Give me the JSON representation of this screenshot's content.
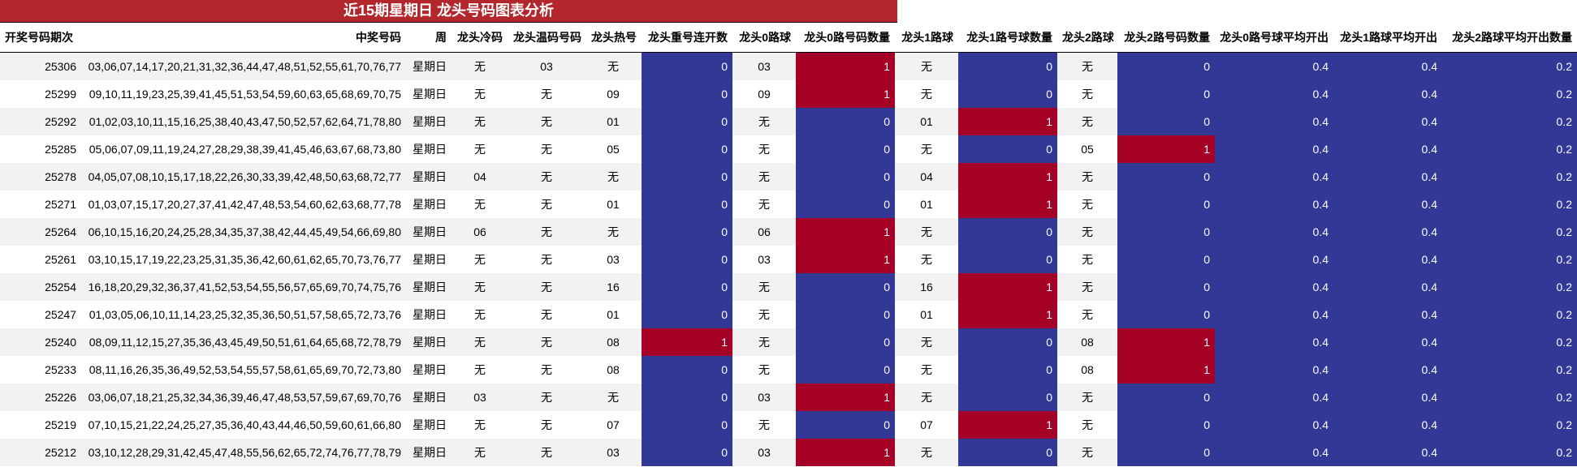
{
  "title": "近15期星期日 龙头号码图表分析",
  "colors": {
    "title_bg": "#b3262b",
    "blue": "#323896",
    "red": "#a50026"
  },
  "headers": [
    "开奖号码期次",
    "中奖号码",
    "周",
    "龙头冷码",
    "龙头温码号码",
    "龙头热号",
    "龙头重号连开数",
    "龙头0路球",
    "龙头0路号码数量",
    "龙头1路球",
    "龙头1路号球数量",
    "龙头2路球",
    "龙头2路号码数量",
    "龙头0路号球平均开出",
    "龙头1路球平均开出",
    "龙头2路球平均开出数量"
  ],
  "rows": [
    [
      "25306",
      "03,06,07,14,17,20,21,31,32,36,44,47,48,51,52,55,61,70,76,77",
      "星期日",
      "无",
      "03",
      "无",
      "0",
      "03",
      "1",
      "无",
      "0",
      "无",
      "0",
      "0.4",
      "0.4",
      "0.2"
    ],
    [
      "25299",
      "09,10,11,19,23,25,39,41,45,51,53,54,59,60,63,65,68,69,70,75",
      "星期日",
      "无",
      "无",
      "09",
      "0",
      "09",
      "1",
      "无",
      "0",
      "无",
      "0",
      "0.4",
      "0.4",
      "0.2"
    ],
    [
      "25292",
      "01,02,03,10,11,15,16,25,38,40,43,47,50,52,57,62,64,71,78,80",
      "星期日",
      "无",
      "无",
      "01",
      "0",
      "无",
      "0",
      "01",
      "1",
      "无",
      "0",
      "0.4",
      "0.4",
      "0.2"
    ],
    [
      "25285",
      "05,06,07,09,11,19,24,27,28,29,38,39,41,45,46,63,67,68,73,80",
      "星期日",
      "无",
      "无",
      "05",
      "0",
      "无",
      "0",
      "无",
      "0",
      "05",
      "1",
      "0.4",
      "0.4",
      "0.2"
    ],
    [
      "25278",
      "04,05,07,08,10,15,17,18,22,26,30,33,39,42,48,50,63,68,72,77",
      "星期日",
      "04",
      "无",
      "无",
      "0",
      "无",
      "0",
      "04",
      "1",
      "无",
      "0",
      "0.4",
      "0.4",
      "0.2"
    ],
    [
      "25271",
      "01,03,07,15,17,20,27,37,41,42,47,48,53,54,60,62,63,68,77,78",
      "星期日",
      "无",
      "无",
      "01",
      "0",
      "无",
      "0",
      "01",
      "1",
      "无",
      "0",
      "0.4",
      "0.4",
      "0.2"
    ],
    [
      "25264",
      "06,10,15,16,20,24,25,28,34,35,37,38,42,44,45,49,54,66,69,80",
      "星期日",
      "06",
      "无",
      "无",
      "0",
      "06",
      "1",
      "无",
      "0",
      "无",
      "0",
      "0.4",
      "0.4",
      "0.2"
    ],
    [
      "25261",
      "03,10,15,17,19,22,23,25,31,35,36,42,60,61,62,65,70,73,76,77",
      "星期日",
      "无",
      "无",
      "03",
      "0",
      "03",
      "1",
      "无",
      "0",
      "无",
      "0",
      "0.4",
      "0.4",
      "0.2"
    ],
    [
      "25254",
      "16,18,20,29,32,36,37,41,52,53,54,55,56,57,65,69,70,74,75,76",
      "星期日",
      "无",
      "无",
      "16",
      "0",
      "无",
      "0",
      "16",
      "1",
      "无",
      "0",
      "0.4",
      "0.4",
      "0.2"
    ],
    [
      "25247",
      "01,03,05,06,10,11,14,23,25,32,35,36,50,51,57,58,65,72,73,76",
      "星期日",
      "无",
      "无",
      "01",
      "0",
      "无",
      "0",
      "01",
      "1",
      "无",
      "0",
      "0.4",
      "0.4",
      "0.2"
    ],
    [
      "25240",
      "08,09,11,12,15,27,35,36,43,45,49,50,51,61,64,65,68,72,78,79",
      "星期日",
      "无",
      "无",
      "08",
      "1",
      "无",
      "0",
      "无",
      "0",
      "08",
      "1",
      "0.4",
      "0.4",
      "0.2"
    ],
    [
      "25233",
      "08,11,16,26,35,36,49,52,53,54,55,57,58,61,65,69,70,72,73,80",
      "星期日",
      "无",
      "无",
      "08",
      "0",
      "无",
      "0",
      "无",
      "0",
      "08",
      "1",
      "0.4",
      "0.4",
      "0.2"
    ],
    [
      "25226",
      "03,06,07,18,21,25,32,34,36,39,46,47,48,53,57,59,67,69,70,76",
      "星期日",
      "03",
      "无",
      "无",
      "0",
      "03",
      "1",
      "无",
      "0",
      "无",
      "0",
      "0.4",
      "0.4",
      "0.2"
    ],
    [
      "25219",
      "07,10,15,21,22,24,25,27,35,36,40,43,44,46,50,59,60,61,66,80",
      "星期日",
      "无",
      "无",
      "07",
      "0",
      "无",
      "0",
      "07",
      "1",
      "无",
      "0",
      "0.4",
      "0.4",
      "0.2"
    ],
    [
      "25212",
      "03,10,12,28,29,31,42,45,47,48,55,56,62,65,72,74,76,77,78,79",
      "星期日",
      "无",
      "无",
      "03",
      "0",
      "03",
      "1",
      "无",
      "0",
      "无",
      "0",
      "0.4",
      "0.4",
      "0.2"
    ]
  ]
}
